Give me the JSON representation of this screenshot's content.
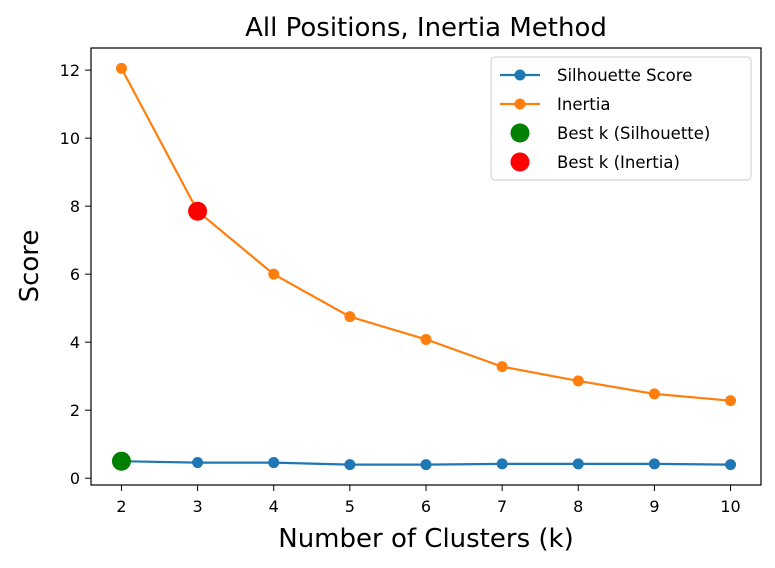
{
  "chart_data": {
    "type": "line",
    "title": "All Positions, Inertia Method",
    "xlabel": "Number of Clusters (k)",
    "ylabel": "Score",
    "x": [
      2,
      3,
      4,
      5,
      6,
      7,
      8,
      9,
      10
    ],
    "xlim": [
      1.6,
      10.4
    ],
    "ylim": [
      -0.2,
      12.65
    ],
    "xticks": [
      "2",
      "3",
      "4",
      "5",
      "6",
      "7",
      "8",
      "9",
      "10"
    ],
    "yticks": [
      "0",
      "2",
      "4",
      "6",
      "8",
      "10",
      "12"
    ],
    "grid": false,
    "legend_position": "top-right",
    "series": [
      {
        "name": "Silhouette Score",
        "color": "#1f77b4",
        "marker": "circle",
        "values": [
          0.5,
          0.46,
          0.46,
          0.4,
          0.4,
          0.42,
          0.42,
          0.42,
          0.4
        ]
      },
      {
        "name": "Inertia",
        "color": "#ff7f0e",
        "marker": "circle",
        "values": [
          12.05,
          7.85,
          6.0,
          4.75,
          4.08,
          3.28,
          2.86,
          2.48,
          2.28
        ]
      }
    ],
    "highlights": [
      {
        "name": "Best k (Silhouette)",
        "color": "#008000",
        "x": 2,
        "y": 0.5
      },
      {
        "name": "Best k (Inertia)",
        "color": "#ff0000",
        "x": 3,
        "y": 7.85
      }
    ]
  }
}
